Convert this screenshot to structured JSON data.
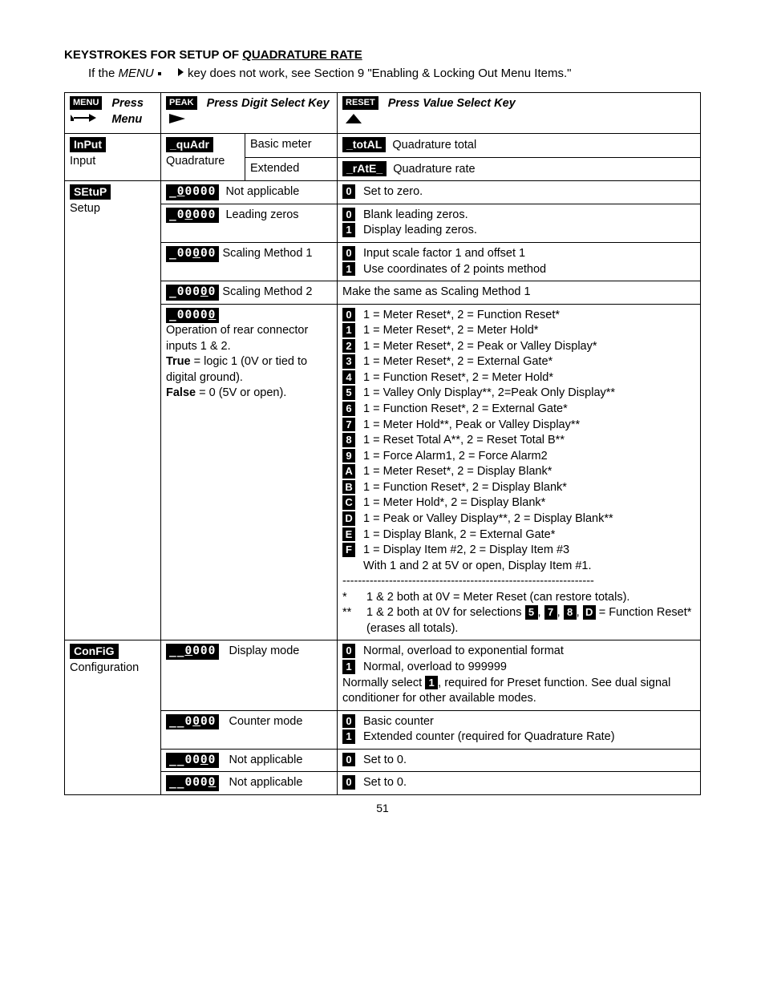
{
  "title_prefix": "KEYSTROKES FOR SETUP OF ",
  "title_underlined": "QUADRATURE RATE",
  "subtitle_a": "If the ",
  "subtitle_menu": "MENU",
  "subtitle_b": " key does not work, see Section 9 \"Enabling & Locking Out Menu Items.\"",
  "hdr": {
    "menu_label": "MENU",
    "menu_text": "Press Menu",
    "peak_label": "PEAK",
    "peak_text": "Press Digit Select Key",
    "reset_label": "RESET",
    "reset_text": "Press Value Select Key"
  },
  "col_widths": {
    "c1": "120px",
    "c2": "105px",
    "c3": "115px",
    "c4": "450px"
  },
  "rows": {
    "input_badge": "InPut",
    "input_under": "Input",
    "quadr_badge": "_quAdr",
    "quadr_under": "Quadrature",
    "basic_meter": "Basic meter",
    "extended": "Extended",
    "total_badge": "_totAL",
    "total_text": "Quadrature total",
    "rate_badge": "_rAtE_",
    "rate_text": "Quadrature rate",
    "setup_badge": "SEtuP",
    "setup_under": "Setup",
    "s1_digits_a": "_",
    "s1_digits_u": "0",
    "s1_digits_b": "0000",
    "s1_label": "Not applicable",
    "s1_opt0": "Set to zero.",
    "s2_digits_a": "_0",
    "s2_digits_u": "0",
    "s2_digits_b": "000",
    "s2_label": "Leading zeros",
    "s2_opt0": "Blank leading zeros.",
    "s2_opt1": "Display leading zeros.",
    "s3_digits_a": "_00",
    "s3_digits_u": "0",
    "s3_digits_b": "00",
    "s3_label": "Scaling Method 1",
    "s3_opt0": "Input scale factor 1 and offset 1",
    "s3_opt1": "Use coordinates of 2 points method",
    "s4_digits_a": "_000",
    "s4_digits_u": "0",
    "s4_digits_b": "0",
    "s4_label": "Scaling Method 2",
    "s4_text": "Make the same as Scaling Method 1",
    "s5_digits_a": "_0000",
    "s5_digits_u": "0",
    "s5_digits_b": "",
    "s5_label1": "Operation of rear connector inputs 1 & 2.",
    "s5_true_lbl": "True",
    "s5_true_txt": " = logic 1 (0V or tied to digital ground).",
    "s5_false_lbl": "False",
    "s5_false_txt": " = 0 (5V or open).",
    "s5_opts": [
      {
        "k": "0",
        "t": "1 = Meter Reset*, 2 = Function Reset*"
      },
      {
        "k": "1",
        "t": "1 = Meter Reset*, 2 = Meter Hold*"
      },
      {
        "k": "2",
        "t": "1 = Meter Reset*, 2 = Peak or Valley Display*"
      },
      {
        "k": "3",
        "t": "1 = Meter Reset*, 2 = External Gate*"
      },
      {
        "k": "4",
        "t": "1 = Function Reset*, 2 = Meter Hold*"
      },
      {
        "k": "5",
        "t": "1 = Valley Only Display**, 2=Peak Only Display**"
      },
      {
        "k": "6",
        "t": "1 = Function Reset*, 2 = External Gate*"
      },
      {
        "k": "7",
        "t": "1 = Meter Hold**, Peak or Valley Display**"
      },
      {
        "k": "8",
        "t": "1 = Reset Total A**, 2 = Reset Total B**"
      },
      {
        "k": "9",
        "t": "1 = Force Alarm1, 2 = Force Alarm2"
      },
      {
        "k": "A",
        "t": "1 = Meter Reset*, 2 = Display Blank*"
      },
      {
        "k": "B",
        "t": "1 = Function Reset*, 2 = Display Blank*"
      },
      {
        "k": "C",
        "t": "1 = Meter Hold*, 2 = Display Blank*"
      },
      {
        "k": "D",
        "t": "1 = Peak or Valley Display**, 2 = Display Blank**"
      },
      {
        "k": "E",
        "t": "1 = Display Blank, 2 = External Gate*"
      },
      {
        "k": "F",
        "t": "1 = Display Item #2, 2 = Display Item #3"
      }
    ],
    "s5_tail": "With 1 and 2 at 5V or open, Display Item #1.",
    "s5_sep": "-----------------------------------------------------------------",
    "s5_fn1_mark": "*",
    "s5_fn1_txt": "1 & 2 both at 0V = Meter Reset (can restore totals).",
    "s5_fn2_mark": "**",
    "s5_fn2_a": "1 & 2 both at 0V for selections ",
    "s5_fn2_k": [
      "5",
      "7",
      "8",
      "D"
    ],
    "s5_fn2_b": " = Function   Reset* (erases all totals).",
    "config_badge": "ConFiG",
    "config_under": "Configuration",
    "c1_digits_a": "__",
    "c1_digits_u": "0",
    "c1_digits_b": "000",
    "c1_label": "Display mode",
    "c1_opt0": "Normal, overload to exponential format",
    "c1_opt1": "Normal, overload to 999999",
    "c1_note_a": "Normally select ",
    "c1_note_k": "1",
    "c1_note_b": ", required for Preset function. See dual signal conditioner for other available modes.",
    "c2_digits_a": "__0",
    "c2_digits_u": "0",
    "c2_digits_b": "00",
    "c2_label": "Counter mode",
    "c2_opt0": "Basic counter",
    "c2_opt1": "Extended counter (required for Quadrature Rate)",
    "c3_digits_a": "__00",
    "c3_digits_u": "0",
    "c3_digits_b": "0",
    "c3_label": "Not applicable",
    "c3_opt0": "Set to 0.",
    "c4_digits_a": "__000",
    "c4_digits_u": "0",
    "c4_digits_b": "",
    "c4_label": "Not applicable",
    "c4_opt0": "Set to 0."
  },
  "page_number": "51"
}
